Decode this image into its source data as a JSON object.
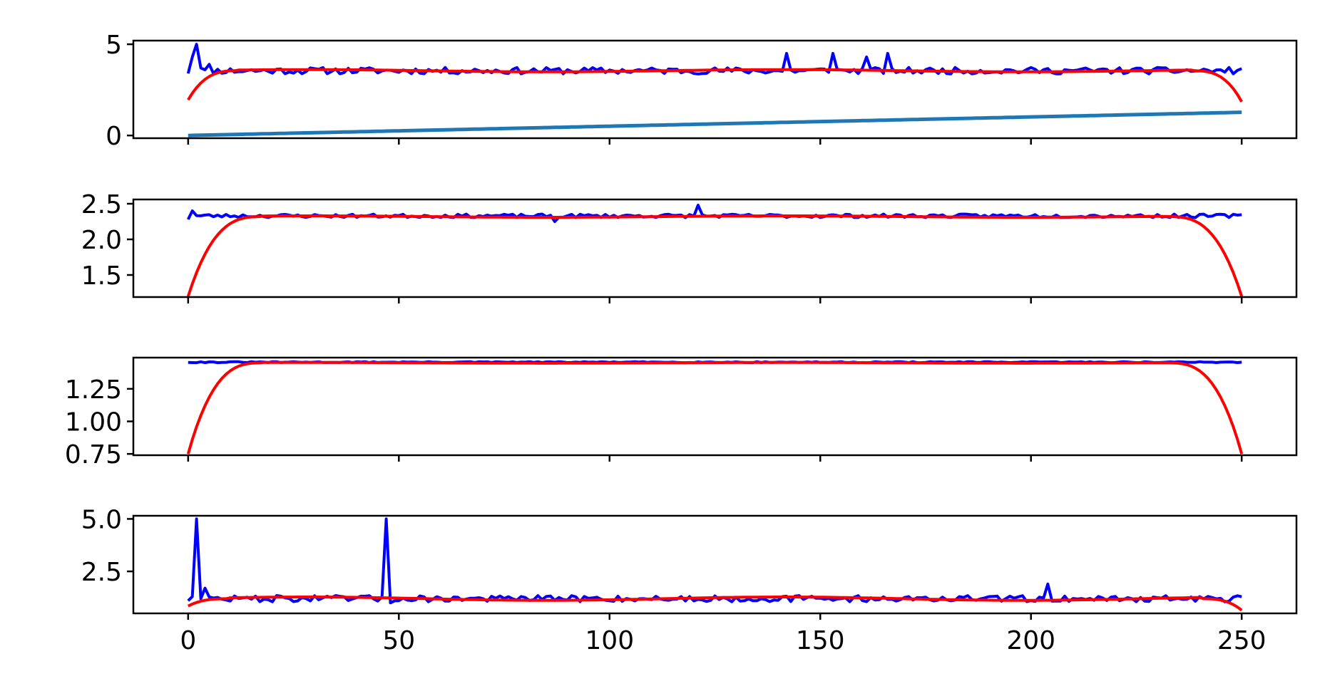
{
  "chart_data": [
    {
      "type": "line",
      "xlim": [
        -13,
        263
      ],
      "ylim": [
        -0.15,
        5.2
      ],
      "yticks": [
        0,
        5
      ],
      "ytick_labels": [
        "0",
        "5"
      ],
      "show_xtick_labels": false,
      "xticks": [
        0,
        50,
        100,
        150,
        200,
        250
      ],
      "xtick_labels": [
        "0",
        "50",
        "100",
        "150",
        "200",
        "250"
      ],
      "series": [
        {
          "color": "#0000ff",
          "width": 4,
          "generator": "noisy",
          "base": 3.55,
          "noise": 0.18,
          "seed": 11,
          "spikes": [
            [
              0,
              3.4
            ],
            [
              1,
              4.3
            ],
            [
              2,
              5.0
            ],
            [
              3,
              3.7
            ],
            [
              4,
              3.6
            ],
            [
              5,
              3.9
            ],
            [
              142,
              4.5
            ],
            [
              153,
              4.5
            ],
            [
              161,
              4.3
            ],
            [
              166,
              4.5
            ]
          ]
        },
        {
          "color": "#ff0000",
          "width": 4,
          "generator": "edge-fade",
          "base": 3.55,
          "start": 1.95,
          "end": 1.85,
          "ramp": 12,
          "wobble": 0.06
        },
        {
          "color": "#1f77b4",
          "width": 5,
          "generator": "linear",
          "start": 0.0,
          "end": 1.27
        }
      ]
    },
    {
      "type": "line",
      "xlim": [
        -13,
        263
      ],
      "ylim": [
        1.19,
        2.56
      ],
      "yticks": [
        1.5,
        2.0,
        2.5
      ],
      "ytick_labels": [
        "1.5",
        "2.0",
        "2.5"
      ],
      "show_xtick_labels": false,
      "xticks": [
        0,
        50,
        100,
        150,
        200,
        250
      ],
      "xtick_labels": [
        "0",
        "50",
        "100",
        "150",
        "200",
        "250"
      ],
      "series": [
        {
          "color": "#0000ff",
          "width": 4,
          "generator": "noisy",
          "base": 2.33,
          "noise": 0.025,
          "seed": 23,
          "spikes": [
            [
              0,
              2.28
            ],
            [
              1,
              2.4
            ],
            [
              121,
              2.48
            ],
            [
              87,
              2.25
            ]
          ]
        },
        {
          "color": "#ff0000",
          "width": 4,
          "generator": "edge-fade",
          "base": 2.32,
          "start": 1.2,
          "end": 1.2,
          "ramp": 18,
          "wobble": 0.01
        }
      ]
    },
    {
      "type": "line",
      "xlim": [
        -13,
        263
      ],
      "ylim": [
        0.74,
        1.49
      ],
      "yticks": [
        0.75,
        1.0,
        1.25
      ],
      "ytick_labels": [
        "0.75",
        "1.00",
        "1.25"
      ],
      "show_xtick_labels": false,
      "xticks": [
        0,
        50,
        100,
        150,
        200,
        250
      ],
      "xtick_labels": [
        "0",
        "50",
        "100",
        "150",
        "200",
        "250"
      ],
      "series": [
        {
          "color": "#0000ff",
          "width": 4,
          "generator": "noisy",
          "base": 1.455,
          "noise": 0.004,
          "seed": 31,
          "spikes": []
        },
        {
          "color": "#ff0000",
          "width": 4,
          "generator": "edge-fade",
          "base": 1.45,
          "start": 0.75,
          "end": 0.75,
          "ramp": 18,
          "wobble": 0.003
        }
      ]
    },
    {
      "type": "line",
      "xlim": [
        -13,
        263
      ],
      "ylim": [
        0.5,
        5.15
      ],
      "yticks": [
        2.5,
        5.0
      ],
      "ytick_labels": [
        "2.5",
        "5.0"
      ],
      "show_xtick_labels": true,
      "xticks": [
        0,
        50,
        100,
        150,
        200,
        250
      ],
      "xtick_labels": [
        "0",
        "50",
        "100",
        "150",
        "200",
        "250"
      ],
      "series": [
        {
          "color": "#0000ff",
          "width": 4,
          "generator": "noisy",
          "base": 1.2,
          "noise": 0.15,
          "seed": 47,
          "spikes": [
            [
              0,
              1.1
            ],
            [
              1,
              1.3
            ],
            [
              2,
              5.0
            ],
            [
              3,
              1.2
            ],
            [
              4,
              1.7
            ],
            [
              47,
              5.0
            ],
            [
              48,
              1.0
            ],
            [
              204,
              1.9
            ]
          ]
        },
        {
          "color": "#ff0000",
          "width": 4,
          "generator": "edge-fade",
          "base": 1.2,
          "start": 0.85,
          "end": 0.65,
          "ramp": 10,
          "wobble": 0.08
        }
      ]
    }
  ]
}
